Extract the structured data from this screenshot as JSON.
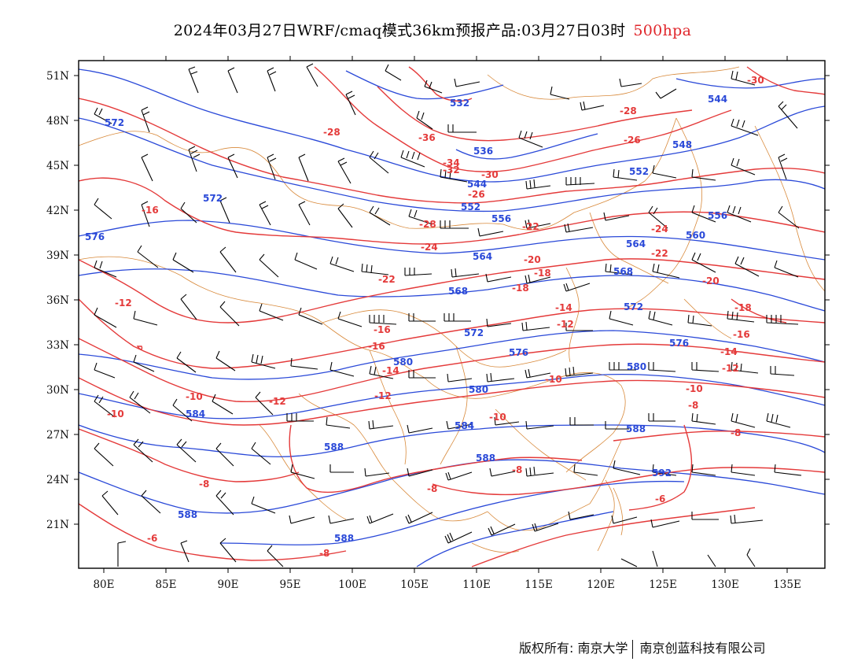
{
  "header": {
    "title": "2024年03月27日WRF/cmaq模式36km预报产品:03月27日03时",
    "level": "500hpa",
    "level_color": "#e0262b"
  },
  "axes": {
    "lat_labels": [
      "51N",
      "48N",
      "45N",
      "42N",
      "39N",
      "36N",
      "33N",
      "30N",
      "27N",
      "24N",
      "21N"
    ],
    "lon_labels": [
      "80E",
      "85E",
      "90E",
      "95E",
      "100E",
      "105E",
      "110E",
      "115E",
      "120E",
      "125E",
      "130E",
      "135E"
    ]
  },
  "contour_labels": {
    "geopotential": [
      "532",
      "544",
      "572",
      "536",
      "548",
      "572",
      "544",
      "552",
      "552",
      "576",
      "556",
      "556",
      "560",
      "564",
      "564",
      "568",
      "568",
      "572",
      "572",
      "576",
      "576",
      "580",
      "580",
      "580",
      "584",
      "584",
      "588",
      "588",
      "592",
      "588",
      "588",
      "588"
    ],
    "temperature": [
      "-30",
      "-28",
      "-36",
      "-28",
      "-34",
      "-32",
      "-30",
      "-26",
      "-28",
      "-16",
      "-26",
      "-24",
      "-22",
      "-24",
      "-20",
      "-22",
      "-22",
      "-20",
      "-18",
      "-18",
      "-18",
      "-16",
      "-14",
      "-12",
      "-16",
      "-12",
      "-16",
      "-14",
      "-14",
      "-12",
      "-10",
      "-12",
      "-10",
      "-8",
      "-10",
      "-12",
      "-10",
      "-8",
      "-8",
      "-10",
      "-8",
      "-6",
      "-8",
      "-6",
      "-8"
    ]
  },
  "colors": {
    "geopotential": "#2a49d8",
    "temperature": "#e43a3a",
    "borders": "#d8893a",
    "wind_barbs": "#000000"
  },
  "footer": {
    "copyright": "版权所有: 南京大学",
    "company": "南京创蓝科技有限公司"
  }
}
